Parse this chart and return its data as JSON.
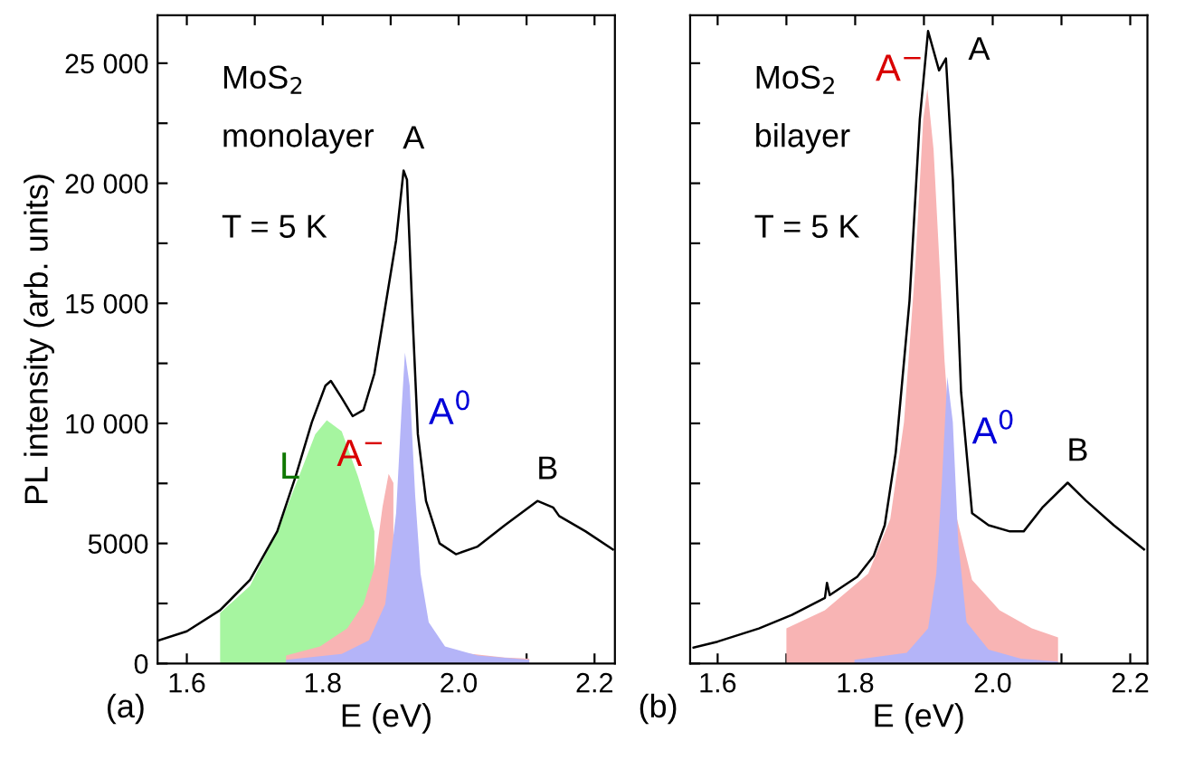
{
  "chart_data": [
    {
      "type": "area",
      "xlabel": "E (eV)",
      "ylabel": "PL intensity (arb. units)",
      "xlim": [
        1.557,
        2.23
      ],
      "ylim": [
        0,
        27000
      ],
      "xticks": [
        1.6,
        {
          "value": 1.7,
          "label": null
        },
        1.8,
        {
          "value": 1.9,
          "label": null
        },
        {
          "value": 2.0,
          "label": "2.0"
        },
        {
          "value": 2.1,
          "label": null
        },
        2.2
      ],
      "yticks": [
        0,
        {
          "value": 2500,
          "label": null
        },
        5000,
        {
          "value": 7500,
          "label": null
        },
        {
          "value": 10000,
          "label": "10 000"
        },
        {
          "value": 12500,
          "label": null
        },
        {
          "value": 15000,
          "label": "15 000"
        },
        {
          "value": 17500,
          "label": null
        },
        {
          "value": 20000,
          "label": "20 000"
        },
        {
          "value": 22500,
          "label": null
        },
        {
          "value": 25000,
          "label": "25 000"
        }
      ],
      "grid": false,
      "legend": false,
      "annotations": [
        "MoS$_{2}$",
        "monolayer",
        "T = 5 K",
        "(a)",
        "A",
        "B"
      ],
      "series": [
        {
          "name": "L",
          "color": "#a6f5a0",
          "x": [
            1.649,
            1.693,
            1.733,
            1.765,
            1.789,
            1.806,
            1.828,
            1.852,
            1.876
          ],
          "values": [
            2100,
            3230,
            5500,
            7780,
            9550,
            10130,
            9670,
            7780,
            5500
          ]
        },
        {
          "name": "A$^{−}$",
          "color": "#f8b4b4",
          "x": [
            1.746,
            1.796,
            1.836,
            1.86,
            1.876,
            1.888,
            1.897,
            1.904,
            1.916,
            1.932,
            1.956,
            2.004,
            2.068,
            2.104
          ],
          "values": [
            330,
            710,
            1460,
            2470,
            3990,
            6520,
            7900,
            7520,
            null,
            null,
            null,
            450,
            250,
            200
          ]
        },
        {
          "name": "A$^{0}$",
          "color": "#b4b4f8",
          "x": [
            1.746,
            1.828,
            1.868,
            1.892,
            1.908,
            1.916,
            1.921,
            1.928,
            1.936,
            1.944,
            1.956,
            1.98,
            2.028,
            2.104
          ],
          "values": [
            150,
            400,
            960,
            2470,
            6260,
            10560,
            12950,
            11570,
            7020,
            3740,
            1720,
            710,
            330,
            150
          ]
        },
        {
          "type": "line",
          "color": "#000000",
          "x": [
            1.558,
            1.6,
            1.649,
            1.693,
            1.733,
            1.76,
            1.784,
            1.804,
            1.812,
            1.828,
            1.844,
            1.86,
            1.876,
            1.892,
            1.908,
            1.919,
            1.924,
            1.932,
            1.94,
            1.952,
            1.972,
            1.996,
            2.028,
            2.068,
            2.116,
            2.139,
            2.148,
            2.187,
            2.227
          ],
          "values": [
            960,
            1340,
            2220,
            3480,
            5500,
            7780,
            10050,
            11570,
            11770,
            11060,
            10300,
            10560,
            12070,
            14850,
            17630,
            20530,
            20150,
            14600,
            9550,
            6770,
            5000,
            4550,
            4870,
            5760,
            6770,
            6500,
            6140,
            5500,
            4750
          ]
        }
      ]
    },
    {
      "type": "area",
      "xlabel": "E (eV)",
      "tick_labels": "x",
      "xlim": [
        1.56,
        2.225
      ],
      "ylim": [
        0,
        27000
      ],
      "xticks": [
        1.6,
        {
          "value": 1.7,
          "label": null
        },
        1.8,
        {
          "value": 1.9,
          "label": null
        },
        {
          "value": 2.0,
          "label": "2.0"
        },
        {
          "value": 2.1,
          "label": null
        },
        2.2
      ],
      "yticks": [
        {
          "value": 0,
          "label": null
        },
        {
          "value": 2500,
          "label": null
        },
        {
          "value": 5000,
          "label": null
        },
        {
          "value": 7500,
          "label": null
        },
        {
          "value": 10000,
          "label": null
        },
        {
          "value": 12500,
          "label": null
        },
        {
          "value": 15000,
          "label": null
        },
        {
          "value": 17500,
          "label": null
        },
        {
          "value": 20000,
          "label": null
        },
        {
          "value": 22500,
          "label": null
        },
        {
          "value": 25000,
          "label": null
        }
      ],
      "grid": false,
      "legend": false,
      "annotations": [
        "MoS$_{2}$",
        "bilayer",
        "T = 5 K",
        "(b)",
        "A",
        "B"
      ],
      "series": [
        {
          "name": "A$^{−}$",
          "color": "#f8b4b4",
          "x": [
            1.7,
            1.756,
            1.819,
            1.851,
            1.871,
            1.887,
            1.899,
            1.905,
            1.914,
            1.93,
            1.946,
            1.97,
            2.01,
            2.057,
            2.095
          ],
          "values": [
            1460,
            2220,
            3740,
            6010,
            10050,
            16360,
            22680,
            23940,
            21410,
            12580,
            6260,
            3480,
            2220,
            1460,
            1090
          ]
        },
        {
          "name": "A$^{0}$",
          "color": "#b4b4f8",
          "x": [
            1.799,
            1.875,
            1.906,
            1.918,
            1.926,
            1.934,
            1.942,
            1.95,
            1.962,
            1.994,
            2.041,
            2.095
          ],
          "values": [
            150,
            450,
            1460,
            3740,
            7530,
            11940,
            10050,
            5000,
            1720,
            580,
            200,
            80
          ]
        },
        {
          "type": "line",
          "color": "#000000",
          "x": [
            1.565,
            1.6,
            1.66,
            1.708,
            1.756,
            1.759,
            1.763,
            1.803,
            1.827,
            1.843,
            1.859,
            1.879,
            1.894,
            1.906,
            1.922,
            1.932,
            1.942,
            1.954,
            1.97,
            1.994,
            2.025,
            2.045,
            2.073,
            2.109,
            2.136,
            2.176,
            2.22
          ],
          "values": [
            660,
            910,
            1460,
            2020,
            2730,
            3360,
            2850,
            3610,
            4490,
            5760,
            8790,
            15100,
            22680,
            26340,
            24700,
            25200,
            20150,
            11310,
            6260,
            5760,
            5500,
            5500,
            6520,
            7530,
            6770,
            5760,
            4750
          ]
        }
      ]
    }
  ]
}
